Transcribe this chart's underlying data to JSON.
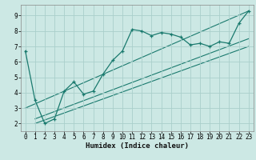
{
  "xlabel": "Humidex (Indice chaleur)",
  "bg_color": "#cce8e4",
  "line_color": "#1a7a6e",
  "grid_color": "#aacfcb",
  "xlim": [
    -0.5,
    23.5
  ],
  "ylim": [
    1.5,
    9.7
  ],
  "xticks": [
    0,
    1,
    2,
    3,
    4,
    5,
    6,
    7,
    8,
    9,
    10,
    11,
    12,
    13,
    14,
    15,
    16,
    17,
    18,
    19,
    20,
    21,
    22,
    23
  ],
  "yticks": [
    2,
    3,
    4,
    5,
    6,
    7,
    8,
    9
  ],
  "main_x": [
    0,
    1,
    2,
    3,
    4,
    5,
    6,
    7,
    8,
    9,
    10,
    11,
    12,
    13,
    14,
    15,
    16,
    17,
    18,
    19,
    20,
    21,
    22,
    23
  ],
  "main_y": [
    6.7,
    3.5,
    2.0,
    2.3,
    4.1,
    4.7,
    3.9,
    4.1,
    5.2,
    6.1,
    6.7,
    8.1,
    8.0,
    7.7,
    7.9,
    7.8,
    7.6,
    7.1,
    7.2,
    7.0,
    7.3,
    7.2,
    8.5,
    9.3
  ],
  "line1_x": [
    1,
    23
  ],
  "line1_y": [
    2.0,
    7.0
  ],
  "line2_x": [
    1,
    23
  ],
  "line2_y": [
    2.3,
    7.5
  ],
  "line3_x": [
    0,
    23
  ],
  "line3_y": [
    3.0,
    9.3
  ],
  "tick_fontsize": 5.5,
  "xlabel_fontsize": 6.5
}
